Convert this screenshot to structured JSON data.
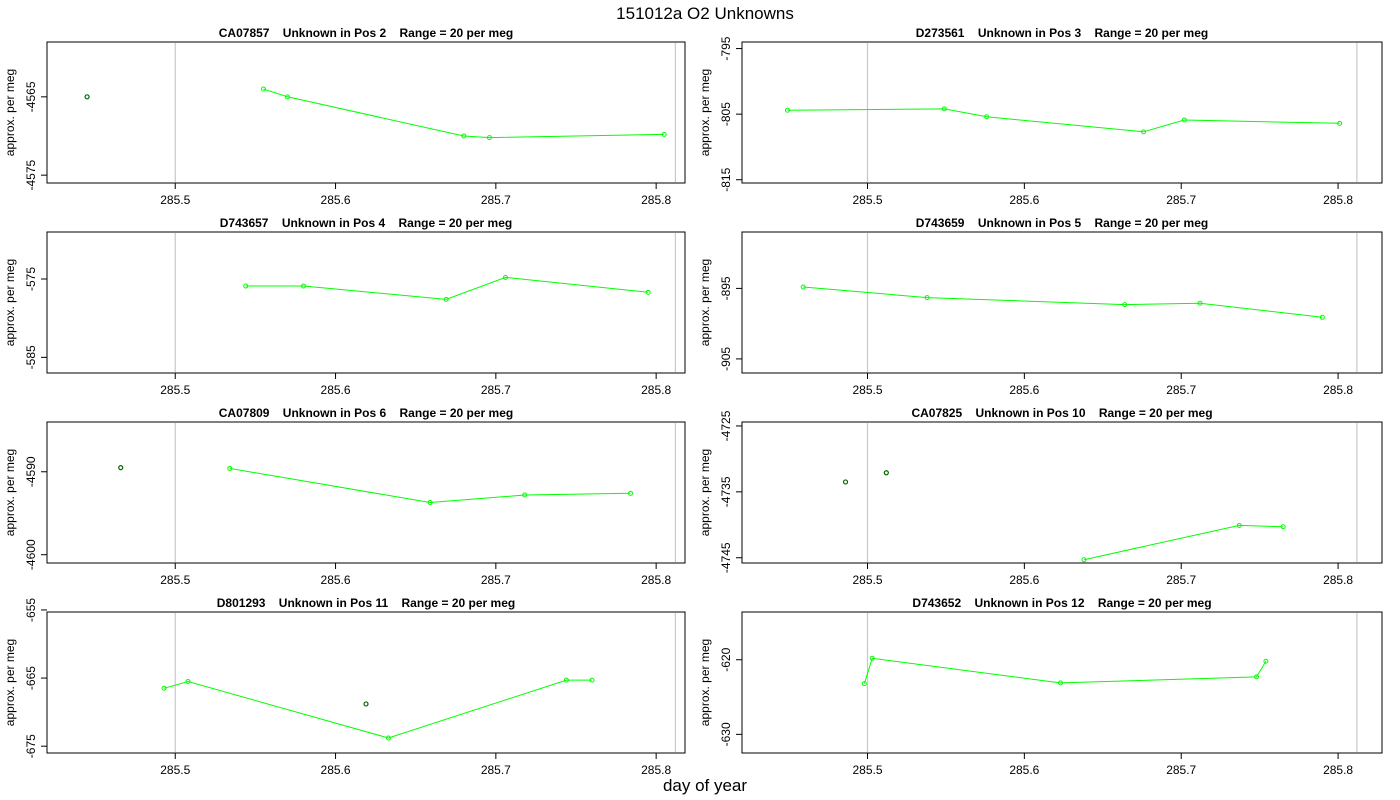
{
  "title": "151012a  O2 Unknowns",
  "xlabel": "day of year",
  "colors": {
    "series": "#00ff00",
    "isolated_point": "#006400",
    "vline": "#c8c8c8",
    "axis": "#000000"
  },
  "chart_data": [
    {
      "type": "line",
      "title_parts": [
        "CA07857",
        "Unknown in Pos 2",
        "Range = 20 per meg"
      ],
      "ylabel": "approx. per meg",
      "xlim": [
        285.42,
        285.818
      ],
      "ylim": [
        -4576,
        -4558
      ],
      "yticks": [
        -4565,
        -4575
      ],
      "xticks": [
        285.5,
        285.6,
        285.7,
        285.8
      ],
      "vlines": [
        285.5,
        285.812
      ],
      "series": [
        {
          "x": [
            285.555,
            285.57,
            285.68,
            285.696,
            285.805
          ],
          "y": [
            -4564,
            -4565,
            -4570,
            -4570.2,
            -4569.8
          ]
        }
      ],
      "isolated": [
        {
          "x": 285.445,
          "y": -4565
        }
      ]
    },
    {
      "type": "line",
      "title_parts": [
        "D273561",
        "Unknown in Pos 3",
        "Range = 20 per meg"
      ],
      "ylabel": "approx. per meg",
      "xlim": [
        285.42,
        285.828
      ],
      "ylim": [
        -815.5,
        -794
      ],
      "yticks": [
        -795,
        -805,
        -815
      ],
      "xticks": [
        285.5,
        285.6,
        285.7,
        285.8
      ],
      "vlines": [
        285.5,
        285.812
      ],
      "series": [
        {
          "x": [
            285.449,
            285.549,
            285.576,
            285.676,
            285.702,
            285.801
          ],
          "y": [
            -804.4,
            -804.2,
            -805.4,
            -807.7,
            -805.9,
            -806.4
          ]
        }
      ],
      "isolated": []
    },
    {
      "type": "line",
      "title_parts": [
        "D743657",
        "Unknown in Pos 4",
        "Range = 20 per meg"
      ],
      "ylabel": "approx. per meg",
      "xlim": [
        285.42,
        285.818
      ],
      "ylim": [
        -587,
        -569
      ],
      "yticks": [
        -575,
        -585
      ],
      "xticks": [
        285.5,
        285.6,
        285.7,
        285.8
      ],
      "vlines": [
        285.5,
        285.812
      ],
      "series": [
        {
          "x": [
            285.544,
            285.58,
            285.669,
            285.706,
            285.795
          ],
          "y": [
            -575.9,
            -575.9,
            -577.6,
            -574.8,
            -576.7
          ]
        }
      ],
      "isolated": []
    },
    {
      "type": "line",
      "title_parts": [
        "D743659",
        "Unknown in Pos 5",
        "Range = 20 per meg"
      ],
      "ylabel": "approx. per meg",
      "xlim": [
        285.42,
        285.828
      ],
      "ylim": [
        -907,
        -887
      ],
      "yticks": [
        -895,
        -905
      ],
      "xticks": [
        285.5,
        285.6,
        285.7,
        285.8
      ],
      "vlines": [
        285.5,
        285.812
      ],
      "series": [
        {
          "x": [
            285.459,
            285.538,
            285.664,
            285.712,
            285.79
          ],
          "y": [
            -894.8,
            -896.3,
            -897.3,
            -897.1,
            -899.1
          ]
        }
      ],
      "isolated": []
    },
    {
      "type": "line",
      "title_parts": [
        "CA07809",
        "Unknown in Pos 6",
        "Range = 20 per meg"
      ],
      "ylabel": "approx. per meg",
      "xlim": [
        285.42,
        285.818
      ],
      "ylim": [
        -4601,
        -4584
      ],
      "yticks": [
        -4590,
        -4600
      ],
      "xticks": [
        285.5,
        285.6,
        285.7,
        285.8
      ],
      "vlines": [
        285.5,
        285.812
      ],
      "series": [
        {
          "x": [
            285.534,
            285.659,
            285.718,
            285.784
          ],
          "y": [
            -4589.6,
            -4593.7,
            -4592.8,
            -4592.6
          ]
        }
      ],
      "isolated": [
        {
          "x": 285.466,
          "y": -4589.5
        }
      ]
    },
    {
      "type": "line",
      "title_parts": [
        "CA07825",
        "Unknown in Pos 10",
        "Range = 20 per meg"
      ],
      "ylabel": "approx. per meg",
      "xlim": [
        285.42,
        285.828
      ],
      "ylim": [
        -4745.8,
        -4724.4
      ],
      "yticks": [
        -4725,
        -4735,
        -4745
      ],
      "xticks": [
        285.5,
        285.6,
        285.7,
        285.8
      ],
      "vlines": [
        285.5,
        285.812
      ],
      "series": [
        {
          "x": [
            285.638,
            285.737,
            285.765
          ],
          "y": [
            -4745.3,
            -4740.1,
            -4740.3
          ]
        }
      ],
      "isolated": [
        {
          "x": 285.486,
          "y": -4733.5
        },
        {
          "x": 285.512,
          "y": -4732.1
        }
      ]
    },
    {
      "type": "line",
      "title_parts": [
        "D801293",
        "Unknown in Pos 11",
        "Range = 20 per meg"
      ],
      "ylabel": "approx. per meg",
      "xlim": [
        285.42,
        285.818
      ],
      "ylim": [
        -676,
        -655.3
      ],
      "yticks": [
        -655,
        -665,
        -675
      ],
      "xticks": [
        285.5,
        285.6,
        285.7,
        285.8
      ],
      "vlines": [
        285.5,
        285.812
      ],
      "series": [
        {
          "x": [
            285.493,
            285.508,
            285.633,
            285.744,
            285.76
          ],
          "y": [
            -666.5,
            -665.5,
            -673.8,
            -665.3,
            -665.3
          ]
        }
      ],
      "isolated": [
        {
          "x": 285.619,
          "y": -668.8
        }
      ]
    },
    {
      "type": "line",
      "title_parts": [
        "D743652",
        "Unknown in Pos 12",
        "Range = 20 per meg"
      ],
      "ylabel": "approx. per meg",
      "xlim": [
        285.42,
        285.828
      ],
      "ylim": [
        -632.5,
        -613.6
      ],
      "yticks": [
        -620,
        -630
      ],
      "xticks": [
        285.5,
        285.6,
        285.7,
        285.8
      ],
      "vlines": [
        285.5,
        285.812
      ],
      "series": [
        {
          "x": [
            285.498,
            285.503,
            285.623,
            285.748,
            285.754
          ],
          "y": [
            -623.2,
            -619.8,
            -623.1,
            -622.3,
            -620.2
          ]
        }
      ],
      "isolated": []
    }
  ]
}
